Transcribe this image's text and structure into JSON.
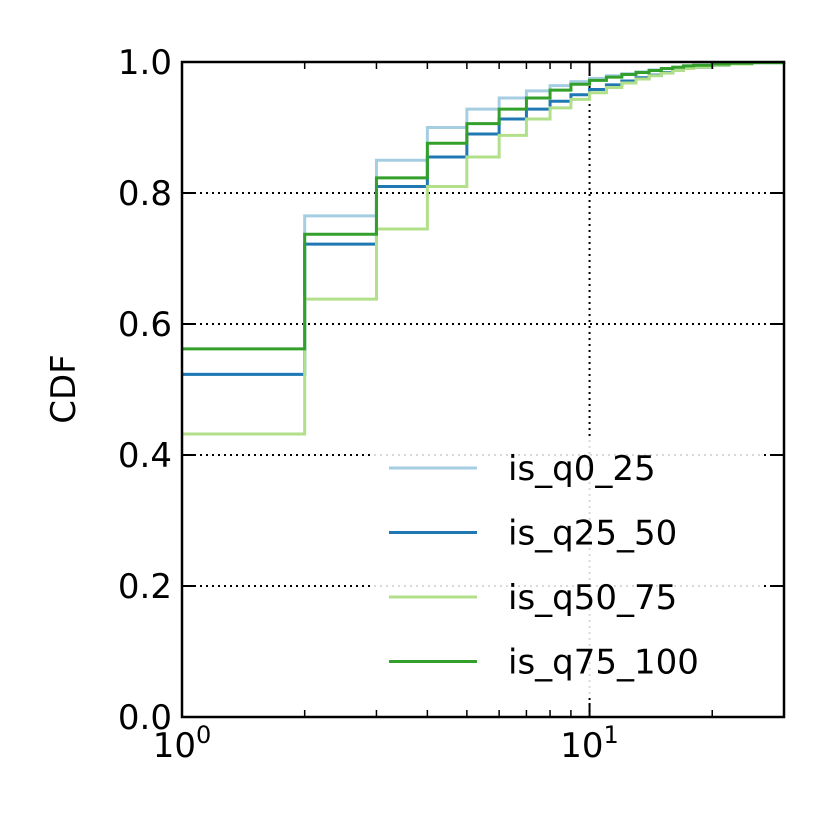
{
  "chart_data": {
    "type": "line",
    "step": "post",
    "xscale": "log",
    "xlim": [
      1,
      30
    ],
    "ylim": [
      0.0,
      1.0
    ],
    "xlabel": "",
    "ylabel": "CDF",
    "grid": true,
    "legend_position": "lower right",
    "xticks": [
      {
        "value": 1,
        "base": "10",
        "exp": "0"
      },
      {
        "value": 10,
        "base": "10",
        "exp": "1"
      }
    ],
    "yticks": [
      {
        "value": 0.0,
        "label": "0.0"
      },
      {
        "value": 0.2,
        "label": "0.2"
      },
      {
        "value": 0.4,
        "label": "0.4"
      },
      {
        "value": 0.6,
        "label": "0.6"
      },
      {
        "value": 0.8,
        "label": "0.8"
      },
      {
        "value": 1.0,
        "label": "1.0"
      }
    ],
    "x": [
      1,
      2,
      3,
      4,
      5,
      6,
      7,
      8,
      9,
      10,
      11,
      12,
      13,
      14,
      15,
      16,
      17,
      18,
      20,
      22,
      25,
      30
    ],
    "series": [
      {
        "name": "is_q0_25",
        "color": "#a6cee3",
        "values": [
          0.523,
          0.765,
          0.85,
          0.9,
          0.928,
          0.945,
          0.956,
          0.964,
          0.97,
          0.975,
          0.979,
          0.982,
          0.985,
          0.988,
          0.99,
          0.992,
          0.994,
          0.995,
          0.997,
          0.998,
          0.999,
          1.0
        ]
      },
      {
        "name": "is_q25_50",
        "color": "#1f78b4",
        "values": [
          0.523,
          0.722,
          0.81,
          0.855,
          0.89,
          0.913,
          0.928,
          0.94,
          0.95,
          0.958,
          0.965,
          0.971,
          0.976,
          0.98,
          0.984,
          0.987,
          0.99,
          0.992,
          0.995,
          0.997,
          0.999,
          1.0
        ]
      },
      {
        "name": "is_q50_75",
        "color": "#b2df8a",
        "values": [
          0.432,
          0.638,
          0.745,
          0.81,
          0.855,
          0.888,
          0.913,
          0.93,
          0.943,
          0.953,
          0.961,
          0.968,
          0.974,
          0.979,
          0.983,
          0.987,
          0.99,
          0.992,
          0.995,
          0.997,
          0.999,
          1.0
        ]
      },
      {
        "name": "is_q75_100",
        "color": "#33a02c",
        "values": [
          0.562,
          0.737,
          0.823,
          0.876,
          0.906,
          0.928,
          0.945,
          0.957,
          0.966,
          0.972,
          0.977,
          0.981,
          0.984,
          0.987,
          0.99,
          0.992,
          0.994,
          0.995,
          0.997,
          0.998,
          0.999,
          1.0
        ]
      }
    ]
  }
}
